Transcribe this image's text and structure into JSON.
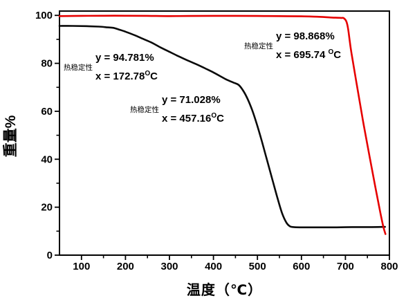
{
  "chart_data": {
    "type": "line",
    "title": "",
    "xlabel": "温度（℃）",
    "ylabel": "重量%",
    "xlim": [
      50,
      800
    ],
    "ylim": [
      0,
      101.8
    ],
    "x_ticks": [
      100,
      200,
      300,
      400,
      500,
      600,
      700,
      800
    ],
    "x_minor_ticks": [
      150,
      250,
      350,
      450,
      550,
      650,
      750
    ],
    "y_ticks": [
      0,
      20,
      40,
      60,
      80,
      100
    ],
    "y_minor_ticks": [
      10,
      30,
      50,
      70,
      90
    ],
    "grid": false,
    "legend": "none",
    "series": [
      {
        "name": "black-sample-curve",
        "color": "#0a0a0a",
        "points": [
          [
            50,
            95.6
          ],
          [
            80,
            95.6
          ],
          [
            110,
            95.5
          ],
          [
            140,
            95.3
          ],
          [
            160,
            95.0
          ],
          [
            173,
            94.78
          ],
          [
            185,
            94.1
          ],
          [
            200,
            93.2
          ],
          [
            220,
            91.8
          ],
          [
            240,
            90.2
          ],
          [
            260,
            88.6
          ],
          [
            280,
            86.6
          ],
          [
            300,
            84.8
          ],
          [
            320,
            83.0
          ],
          [
            340,
            81.3
          ],
          [
            360,
            79.7
          ],
          [
            380,
            78.0
          ],
          [
            400,
            76.2
          ],
          [
            415,
            74.7
          ],
          [
            430,
            73.2
          ],
          [
            445,
            72.0
          ],
          [
            457,
            71.03
          ],
          [
            468,
            68.5
          ],
          [
            478,
            65.0
          ],
          [
            488,
            60.5
          ],
          [
            498,
            55.0
          ],
          [
            510,
            47.5
          ],
          [
            522,
            39.5
          ],
          [
            534,
            31.5
          ],
          [
            546,
            23.5
          ],
          [
            556,
            17.5
          ],
          [
            566,
            13.5
          ],
          [
            574,
            12.0
          ],
          [
            582,
            11.7
          ],
          [
            600,
            11.6
          ],
          [
            640,
            11.6
          ],
          [
            680,
            11.6
          ],
          [
            720,
            11.7
          ],
          [
            760,
            11.7
          ],
          [
            790,
            11.8
          ]
        ]
      },
      {
        "name": "red-sample-curve",
        "color": "#e60000",
        "points": [
          [
            50,
            99.7
          ],
          [
            100,
            99.8
          ],
          [
            150,
            99.85
          ],
          [
            200,
            99.85
          ],
          [
            250,
            99.8
          ],
          [
            300,
            99.7
          ],
          [
            350,
            99.75
          ],
          [
            400,
            99.8
          ],
          [
            450,
            99.8
          ],
          [
            500,
            99.75
          ],
          [
            550,
            99.7
          ],
          [
            600,
            99.6
          ],
          [
            640,
            99.4
          ],
          [
            670,
            99.1
          ],
          [
            690,
            98.95
          ],
          [
            696,
            98.87
          ],
          [
            702,
            97.5
          ],
          [
            706,
            94.5
          ],
          [
            710,
            89.0
          ],
          [
            714,
            84.0
          ],
          [
            725,
            72.0
          ],
          [
            740,
            56.0
          ],
          [
            755,
            41.0
          ],
          [
            768,
            28.5
          ],
          [
            778,
            19.0
          ],
          [
            786,
            12.0
          ],
          [
            791,
            8.8
          ]
        ]
      }
    ],
    "annotated_points": [
      {
        "series": "black-sample-curve",
        "x": 172.78,
        "y": 94.781
      },
      {
        "series": "black-sample-curve",
        "x": 457.16,
        "y": 71.028
      },
      {
        "series": "red-sample-curve",
        "x": 695.74,
        "y": 98.868
      }
    ]
  },
  "annotations": [
    {
      "label": "热稳定性",
      "line1": "y = 94.781%",
      "x_pre": "x = 172.78",
      "x_sup": "O",
      "x_post": "C"
    },
    {
      "label": "热稳定性",
      "line1": "y = 71.028%",
      "x_pre": "x = 457.16",
      "x_sup": "O",
      "x_post": "C"
    },
    {
      "label": "热稳定性",
      "line1": "y = 98.868%",
      "x_pre": "x = 695.74 ",
      "x_sup": "O",
      "x_post": "C"
    }
  ]
}
